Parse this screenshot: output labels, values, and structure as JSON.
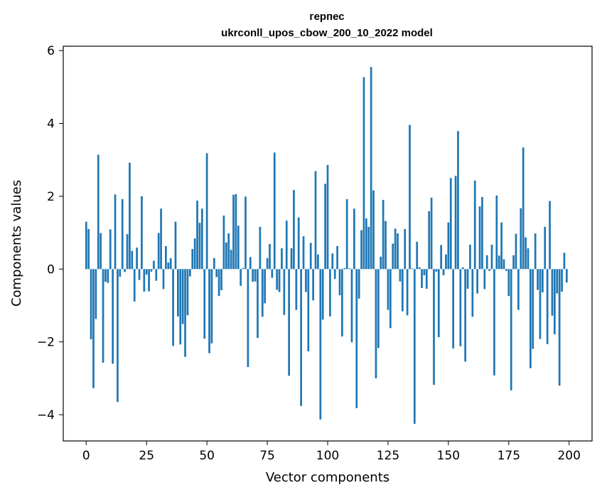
{
  "chart_data": {
    "type": "bar",
    "title": "герпес",
    "subtitle": "ukrconll_upos_cbow_200_10_2022 model",
    "xlabel": "Vector components",
    "ylabel": "Components values",
    "xlim": [
      -9.5,
      209.5
    ],
    "ylim": [
      -4.72,
      6.12
    ],
    "xticks": [
      0,
      25,
      50,
      75,
      100,
      125,
      150,
      175,
      200
    ],
    "yticks": [
      -4,
      -2,
      0,
      2,
      4,
      6
    ],
    "xtick_labels": [
      "0",
      "25",
      "50",
      "75",
      "100",
      "125",
      "150",
      "175",
      "200"
    ],
    "ytick_labels": [
      "−4",
      "−2",
      "0",
      "2",
      "4",
      "6"
    ],
    "bar_color": "#1f77b4",
    "x": [
      0,
      1,
      2,
      3,
      4,
      5,
      6,
      7,
      8,
      9,
      10,
      11,
      12,
      13,
      14,
      15,
      16,
      17,
      18,
      19,
      20,
      21,
      22,
      23,
      24,
      25,
      26,
      27,
      28,
      29,
      30,
      31,
      32,
      33,
      34,
      35,
      36,
      37,
      38,
      39,
      40,
      41,
      42,
      43,
      44,
      45,
      46,
      47,
      48,
      49,
      50,
      51,
      52,
      53,
      54,
      55,
      56,
      57,
      58,
      59,
      60,
      61,
      62,
      63,
      64,
      65,
      66,
      67,
      68,
      69,
      70,
      71,
      72,
      73,
      74,
      75,
      76,
      77,
      78,
      79,
      80,
      81,
      82,
      83,
      84,
      85,
      86,
      87,
      88,
      89,
      90,
      91,
      92,
      93,
      94,
      95,
      96,
      97,
      98,
      99,
      100,
      101,
      102,
      103,
      104,
      105,
      106,
      107,
      108,
      109,
      110,
      111,
      112,
      113,
      114,
      115,
      116,
      117,
      118,
      119,
      120,
      121,
      122,
      123,
      124,
      125,
      126,
      127,
      128,
      129,
      130,
      131,
      132,
      133,
      134,
      135,
      136,
      137,
      138,
      139,
      140,
      141,
      142,
      143,
      144,
      145,
      146,
      147,
      148,
      149,
      150,
      151,
      152,
      153,
      154,
      155,
      156,
      157,
      158,
      159,
      160,
      161,
      162,
      163,
      164,
      165,
      166,
      167,
      168,
      169,
      170,
      171,
      172,
      173,
      174,
      175,
      176,
      177,
      178,
      179,
      180,
      181,
      182,
      183,
      184,
      185,
      186,
      187,
      188,
      189,
      190,
      191,
      192,
      193,
      194,
      195,
      196,
      197,
      198,
      199
    ],
    "values": [
      1.3,
      1.1,
      -1.93,
      -3.27,
      -1.37,
      3.14,
      0.99,
      -2.57,
      -0.35,
      -0.38,
      1.09,
      -2.6,
      2.05,
      -3.65,
      -0.21,
      1.92,
      -0.08,
      0.96,
      2.92,
      0.5,
      -0.89,
      0.59,
      -0.3,
      2.0,
      -0.62,
      -0.15,
      -0.61,
      -0.07,
      0.23,
      -0.32,
      0.99,
      1.66,
      -0.55,
      0.63,
      0.18,
      0.3,
      -2.11,
      1.3,
      -1.3,
      -2.07,
      -1.51,
      -2.41,
      -1.27,
      -0.2,
      0.55,
      0.84,
      1.88,
      1.27,
      1.66,
      -1.91,
      3.18,
      -2.31,
      -2.04,
      0.3,
      -0.22,
      -0.74,
      -0.58,
      1.47,
      0.73,
      0.98,
      0.53,
      2.04,
      2.06,
      1.19,
      -0.46,
      0.03,
      1.99,
      -2.69,
      0.33,
      -0.35,
      -0.34,
      -1.89,
      1.16,
      -1.31,
      -0.94,
      0.3,
      0.69,
      -0.24,
      3.2,
      -0.57,
      -0.63,
      0.57,
      -1.26,
      1.33,
      -2.93,
      0.57,
      2.17,
      -1.12,
      1.42,
      -3.76,
      0.9,
      -0.63,
      -2.26,
      0.72,
      -0.86,
      2.69,
      0.4,
      -4.13,
      -1.39,
      2.34,
      2.86,
      -1.3,
      0.43,
      -0.27,
      0.63,
      -0.72,
      -1.85,
      0.03,
      1.92,
      0.02,
      -2.01,
      1.66,
      -3.82,
      -0.81,
      1.07,
      5.27,
      1.39,
      1.16,
      5.55,
      2.16,
      -3.0,
      -2.17,
      0.34,
      1.9,
      1.32,
      -1.12,
      -1.62,
      0.7,
      1.11,
      0.98,
      -0.34,
      -1.16,
      1.1,
      -1.27,
      3.96,
      0.02,
      -4.25,
      0.75,
      0.05,
      -0.52,
      -0.17,
      -0.54,
      1.59,
      1.96,
      -3.18,
      -0.07,
      -1.87,
      0.66,
      -0.17,
      0.4,
      1.28,
      2.5,
      -2.18,
      2.56,
      3.79,
      -2.12,
      0.05,
      -2.54,
      -0.54,
      0.67,
      -1.31,
      2.43,
      -0.67,
      1.72,
      1.98,
      -0.55,
      0.38,
      -0.05,
      0.67,
      -2.92,
      2.02,
      0.37,
      1.28,
      0.27,
      -0.05,
      -0.74,
      -3.33,
      0.38,
      0.97,
      -1.12,
      1.67,
      3.34,
      0.87,
      0.57,
      -2.72,
      -2.19,
      0.98,
      -0.57,
      -1.92,
      -0.64,
      1.16,
      -2.06,
      1.87,
      -1.28,
      -1.79,
      -0.67,
      -3.2,
      -0.62,
      0.45,
      -0.37
    ]
  }
}
